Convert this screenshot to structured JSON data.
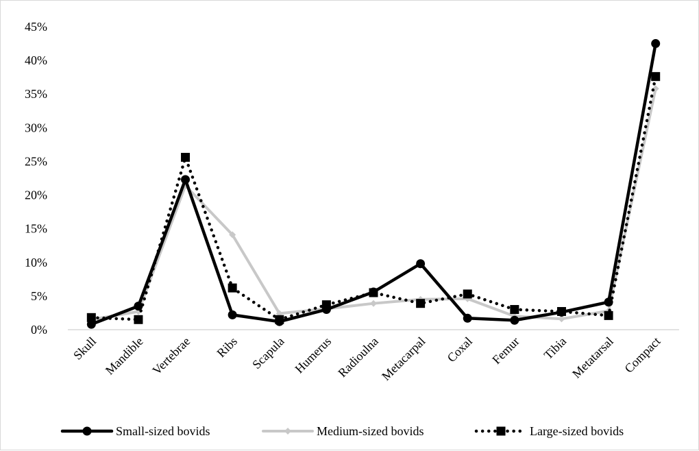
{
  "chart_data": {
    "type": "line",
    "title": "",
    "xlabel": "",
    "ylabel": "",
    "categories": [
      "Skull",
      "Mandible",
      "Vertebrae",
      "Ribs",
      "Scapula",
      "Humerus",
      "Radioulna",
      "Metacarpal",
      "Coxal",
      "Femur",
      "Tibia",
      "Metatarsal",
      "Compact"
    ],
    "ylim": [
      0,
      45
    ],
    "yticks": [
      0,
      5,
      10,
      15,
      20,
      25,
      30,
      35,
      40,
      45
    ],
    "ytick_labels": [
      "0%",
      "5%",
      "10%",
      "15%",
      "20%",
      "25%",
      "30%",
      "35%",
      "40%",
      "45%"
    ],
    "grid": false,
    "legend_position": "bottom",
    "series": [
      {
        "name": "Small-sized bovids",
        "color": "#000000",
        "line_style": "solid",
        "marker": "circle",
        "values": [
          0.8,
          3.5,
          22.3,
          2.2,
          1.2,
          3.0,
          5.6,
          9.8,
          1.7,
          1.4,
          2.6,
          4.1,
          42.5
        ]
      },
      {
        "name": "Medium-sized bovids",
        "color": "#c8c8c8",
        "line_style": "solid",
        "marker": "diamond",
        "values": [
          1.5,
          2.7,
          21.4,
          14.1,
          2.4,
          3.1,
          3.9,
          4.5,
          4.6,
          2.0,
          1.6,
          2.8,
          35.8
        ]
      },
      {
        "name": "Large-sized bovids",
        "color": "#000000",
        "line_style": "dotted",
        "marker": "square",
        "values": [
          1.8,
          1.5,
          25.6,
          6.2,
          1.5,
          3.7,
          5.5,
          3.9,
          5.3,
          3.0,
          2.7,
          2.1,
          37.6
        ]
      }
    ]
  }
}
